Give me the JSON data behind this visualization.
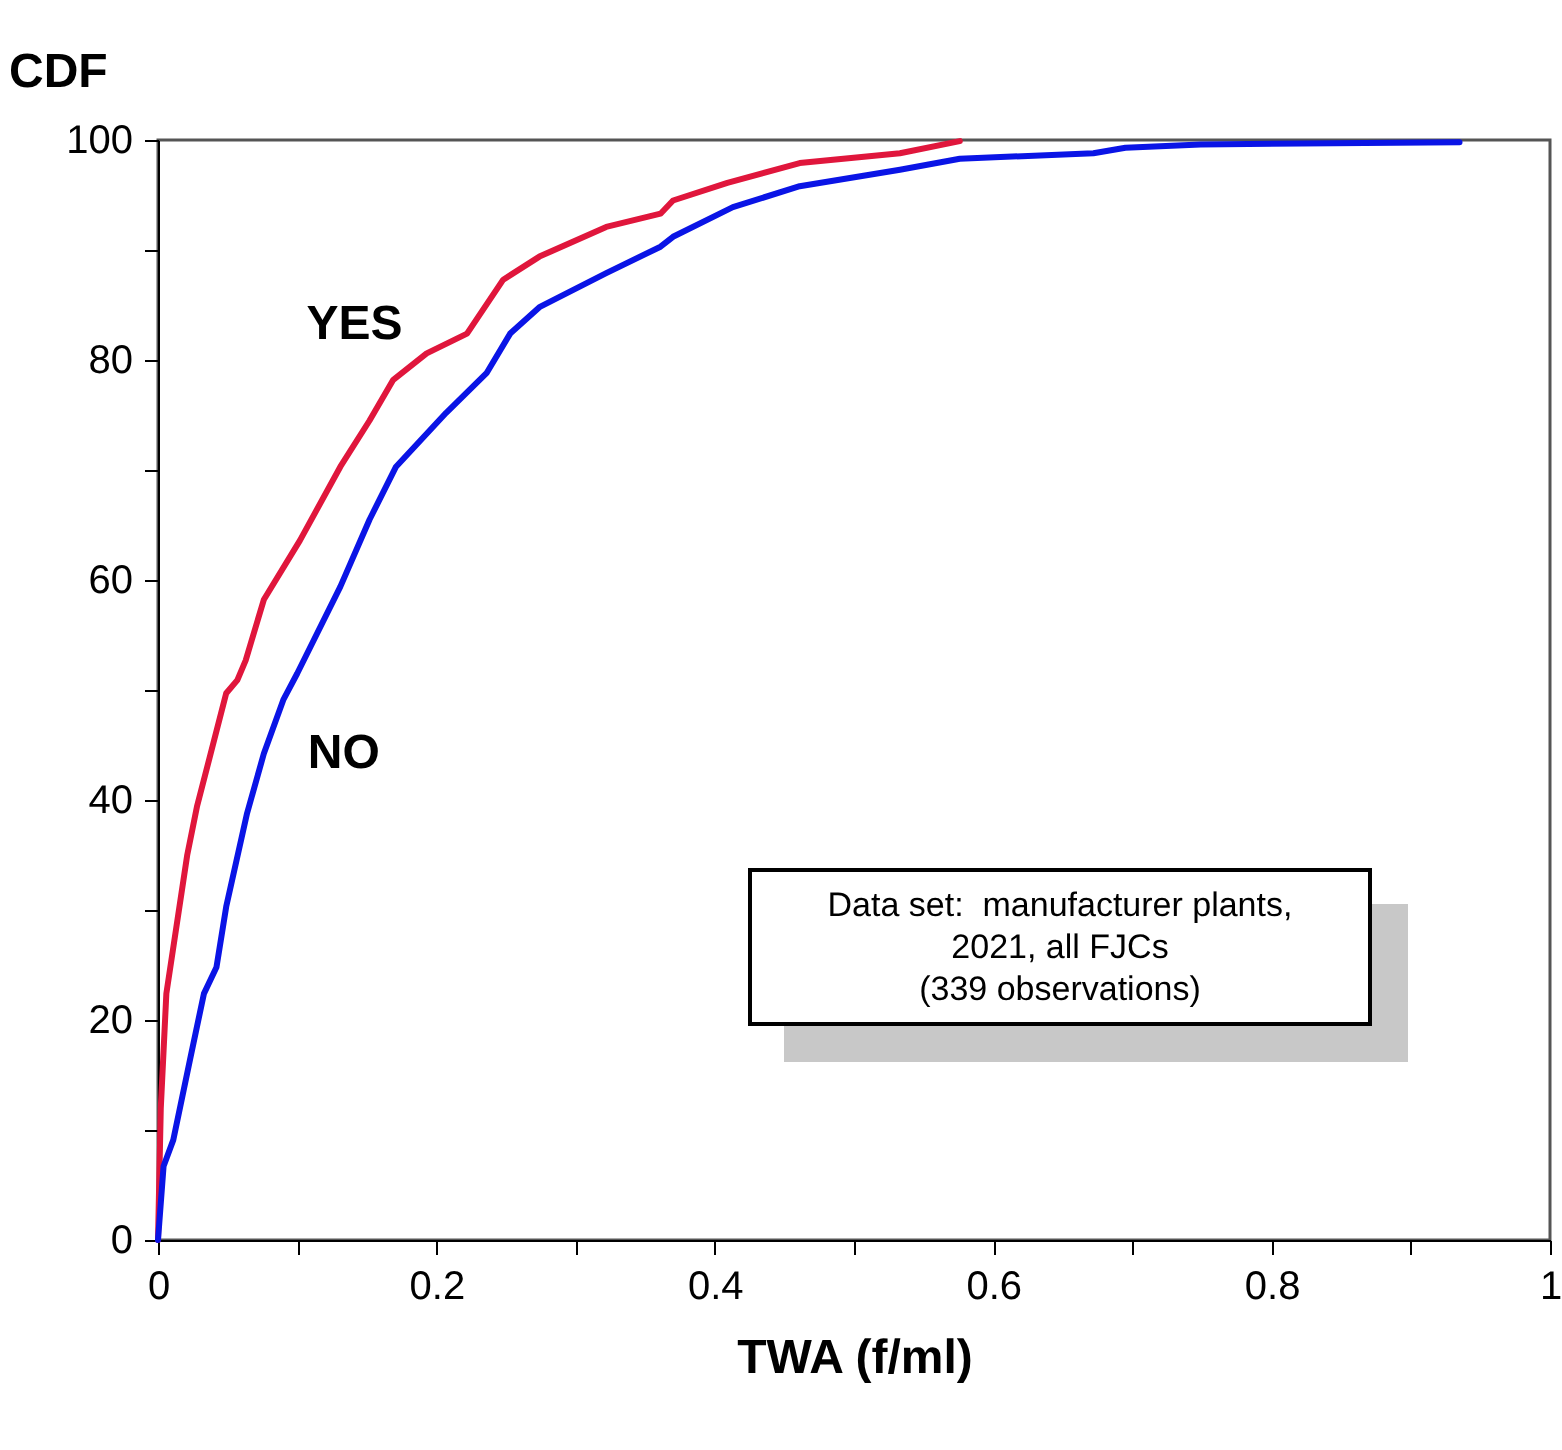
{
  "chart_data": {
    "type": "line",
    "ylabel": "CDF",
    "xlabel": "TWA (f/ml)",
    "xlim": [
      0,
      1
    ],
    "xticks": [
      0,
      {
        "value": 0.1,
        "label": null
      },
      0.2,
      {
        "value": 0.3,
        "label": null
      },
      0.4,
      {
        "value": 0.5,
        "label": null
      },
      0.6,
      {
        "value": 0.7,
        "label": null
      },
      0.8,
      {
        "value": 0.9,
        "label": null
      },
      1
    ],
    "ylim": [
      0,
      100
    ],
    "yticks": [
      0,
      {
        "value": 10,
        "label": null
      },
      20,
      {
        "value": 30,
        "label": null
      },
      40,
      {
        "value": 50,
        "label": null
      },
      60,
      {
        "value": 70,
        "label": null
      },
      80,
      {
        "value": 90,
        "label": null
      },
      100
    ],
    "grid": false,
    "legend": false,
    "marker": "none",
    "line_style": "solid",
    "series": [
      {
        "name": "YES",
        "color": "#e0163c",
        "x": [
          0,
          0.002,
          0.006,
          0.021,
          0.028,
          0.049,
          0.057,
          0.063,
          0.076,
          0.102,
          0.131,
          0.152,
          0.169,
          0.193,
          0.222,
          0.248,
          0.274,
          0.322,
          0.361,
          0.37,
          0.409,
          0.461,
          0.533,
          0.576
        ],
        "values": [
          0,
          12,
          22.4,
          35,
          39.4,
          49.7,
          50.9,
          52.7,
          58.2,
          63.6,
          70.3,
          74.5,
          78.2,
          80.6,
          82.4,
          87.3,
          89.4,
          92.1,
          93.3,
          94.5,
          96.1,
          97.9,
          98.8,
          99.9
        ]
      },
      {
        "name": "NO",
        "color": "#0a14e6",
        "x": [
          0,
          0.004,
          0.011,
          0.023,
          0.033,
          0.042,
          0.049,
          0.064,
          0.076,
          0.09,
          0.1,
          0.131,
          0.152,
          0.171,
          0.207,
          0.236,
          0.253,
          0.274,
          0.322,
          0.361,
          0.37,
          0.413,
          0.461,
          0.533,
          0.576,
          0.672,
          0.695,
          0.749,
          0.935
        ],
        "values": [
          0,
          6.7,
          9.1,
          16.4,
          22.4,
          24.8,
          30.3,
          38.8,
          44.2,
          49.1,
          51.5,
          59.4,
          65.5,
          70.3,
          75.2,
          78.8,
          82.4,
          84.8,
          87.9,
          90.3,
          91.2,
          93.9,
          95.8,
          97.3,
          98.3,
          98.8,
          99.3,
          99.6,
          99.8
        ]
      }
    ],
    "annotations": [
      "Data set:  manufacturer plants,\n2021, all FJCs\n(339 observations)"
    ]
  }
}
